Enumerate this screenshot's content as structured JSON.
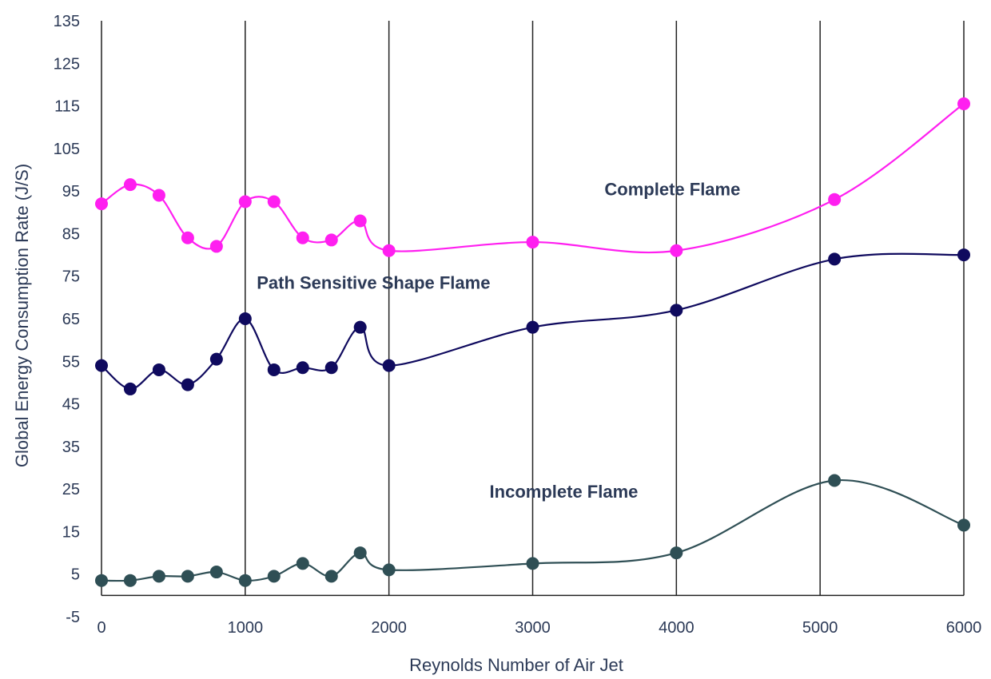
{
  "chart_data": {
    "type": "line",
    "title": "",
    "xlabel": "Reynolds Number of Air Jet",
    "ylabel": "Global Energy Consumption Rate (J/S)",
    "xlim": [
      0,
      6000
    ],
    "ylim": [
      -5,
      135
    ],
    "x_ticks": [
      0,
      1000,
      2000,
      3000,
      4000,
      5000,
      6000
    ],
    "y_ticks": [
      -5,
      5,
      15,
      25,
      35,
      45,
      55,
      65,
      75,
      85,
      95,
      105,
      115,
      125,
      135
    ],
    "grid": "vertical",
    "legend": "none",
    "x": [
      0,
      200,
      400,
      600,
      800,
      1000,
      1200,
      1400,
      1600,
      1800,
      2000,
      3000,
      4000,
      5100,
      6000
    ],
    "series": [
      {
        "name": "",
        "color": "#ff1ff0",
        "values": [
          92,
          96.5,
          94,
          84,
          82,
          92.5,
          92.5,
          84,
          83.5,
          88,
          81,
          83,
          81,
          93,
          115.5
        ]
      },
      {
        "name": "",
        "color": "#0f0a5e",
        "values": [
          54,
          48.5,
          53,
          49.5,
          55.5,
          65,
          53,
          53.5,
          53.5,
          63,
          54,
          63,
          67,
          79,
          80
        ]
      },
      {
        "name": "",
        "color": "#2f4f55",
        "values": [
          3.5,
          3.5,
          4.5,
          4.5,
          5.5,
          3.5,
          4.5,
          7.5,
          4.5,
          10,
          6,
          7.5,
          10,
          27,
          16.5
        ]
      }
    ],
    "annotations": [
      {
        "text": "Complete Flame",
        "x": 3500,
        "y": 94
      },
      {
        "text": "Path Sensitive Shape Flame",
        "x": 1080,
        "y": 72
      },
      {
        "text": "Incomplete Flame",
        "x": 2700,
        "y": 23
      }
    ]
  }
}
